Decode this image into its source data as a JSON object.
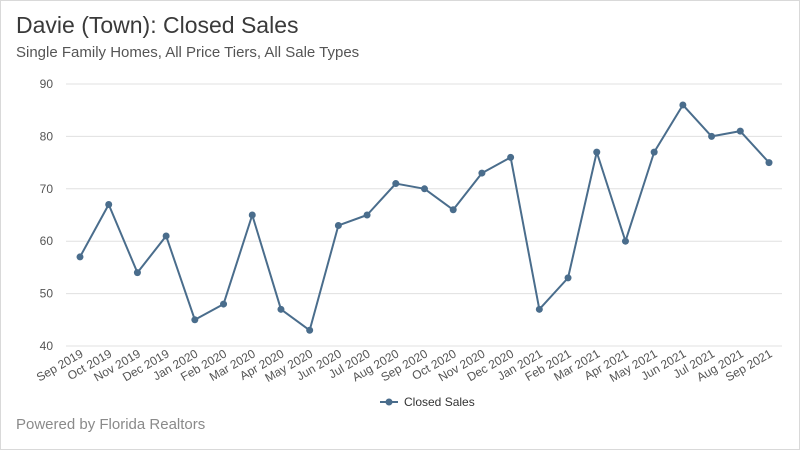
{
  "title": "Davie (Town): Closed Sales",
  "subtitle": "Single Family Homes, All Price Tiers, All Sale Types",
  "footer": "Powered by Florida Realtors",
  "colors": {
    "series": "#4a6d8c",
    "grid": "#e0e0e0",
    "text": "#555555"
  },
  "chart_data": {
    "type": "line",
    "title": "Davie (Town): Closed Sales",
    "subtitle": "Single Family Homes, All Price Tiers, All Sale Types",
    "xlabel": "",
    "ylabel": "",
    "ylim": [
      40,
      90
    ],
    "yticks": [
      40,
      50,
      60,
      70,
      80,
      90
    ],
    "grid": true,
    "legend": "bottom-center",
    "categories": [
      "Sep 2019",
      "Oct 2019",
      "Nov 2019",
      "Dec 2019",
      "Jan 2020",
      "Feb 2020",
      "Mar 2020",
      "Apr 2020",
      "May 2020",
      "Jun 2020",
      "Jul 2020",
      "Aug 2020",
      "Sep 2020",
      "Oct 2020",
      "Nov 2020",
      "Dec 2020",
      "Jan 2021",
      "Feb 2021",
      "Mar 2021",
      "Apr 2021",
      "May 2021",
      "Jun 2021",
      "Jul 2021",
      "Aug 2021",
      "Sep 2021"
    ],
    "series": [
      {
        "name": "Closed Sales",
        "values": [
          57,
          67,
          54,
          61,
          45,
          48,
          65,
          47,
          43,
          63,
          65,
          71,
          70,
          66,
          73,
          76,
          47,
          53,
          77,
          60,
          77,
          86,
          80,
          81,
          75
        ]
      }
    ]
  }
}
